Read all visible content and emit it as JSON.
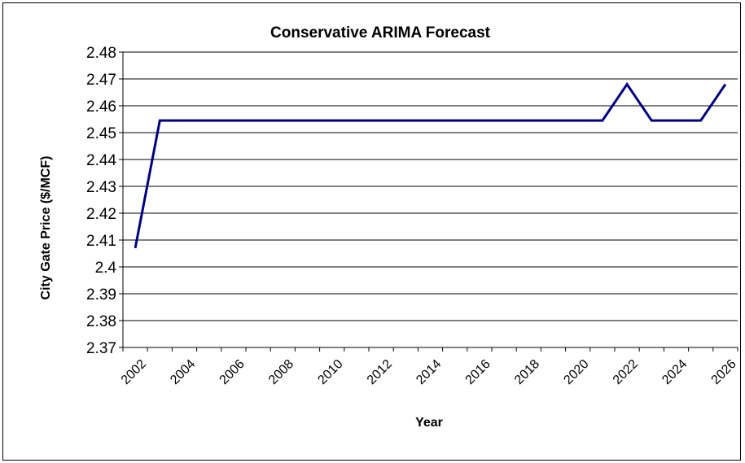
{
  "chart_data": {
    "type": "line",
    "title": "Conservative ARIMA Forecast",
    "xlabel": "Year",
    "ylabel": "City Gate Price ($/MCF)",
    "ylim": [
      2.37,
      2.48
    ],
    "yticks": [
      "2.48",
      "2.47",
      "2.46",
      "2.45",
      "2.44",
      "2.43",
      "2.42",
      "2.41",
      "2.4",
      "2.39",
      "2.38",
      "2.37"
    ],
    "xticks": [
      "2002",
      "2004",
      "2006",
      "2008",
      "2010",
      "2012",
      "2014",
      "2016",
      "2018",
      "2020",
      "2022",
      "2024",
      "2026"
    ],
    "grid": "horizontal",
    "line_color": "#000080",
    "series": [
      {
        "x": [
          2002,
          2003,
          2004,
          2005,
          2006,
          2007,
          2008,
          2009,
          2010,
          2011,
          2012,
          2013,
          2014,
          2015,
          2016,
          2017,
          2018,
          2019,
          2020,
          2021,
          2022,
          2023,
          2024,
          2025,
          2026
        ],
        "values": [
          2.407,
          2.4545,
          2.4545,
          2.4545,
          2.4545,
          2.4545,
          2.4545,
          2.4545,
          2.4545,
          2.4545,
          2.4545,
          2.4545,
          2.4545,
          2.4545,
          2.4545,
          2.4545,
          2.4545,
          2.4545,
          2.4545,
          2.4545,
          2.468,
          2.4545,
          2.4545,
          2.4545,
          2.468
        ]
      }
    ]
  }
}
